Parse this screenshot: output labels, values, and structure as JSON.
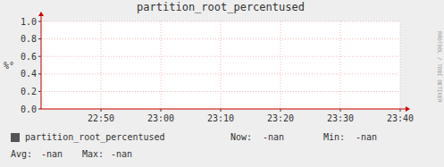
{
  "chart_data": {
    "type": "line",
    "title": "partition_root_percentused",
    "y_label": "%°",
    "categories": [
      null,
      "22:50",
      "23:00",
      "23:10",
      "23:20",
      "23:30",
      "23:40"
    ],
    "series": [
      {
        "name": "partition_root_percentused",
        "color": "#555555",
        "values": [
          null,
          null,
          null,
          null,
          null,
          null,
          null
        ]
      }
    ],
    "ylim": [
      0.0,
      1.0
    ],
    "yticks": [
      {
        "value": 0.0,
        "label": "0.0"
      },
      0.2,
      0.4,
      0.6,
      0.8,
      {
        "value": 1.0,
        "label": "1.0"
      }
    ],
    "grid": true,
    "annotations": [
      "Now:",
      "-nan",
      "Min:",
      "-nan",
      "Avg:",
      "-nan",
      "Max:",
      "-nan",
      "RRDTOOL / TOBI OETIKER"
    ]
  }
}
